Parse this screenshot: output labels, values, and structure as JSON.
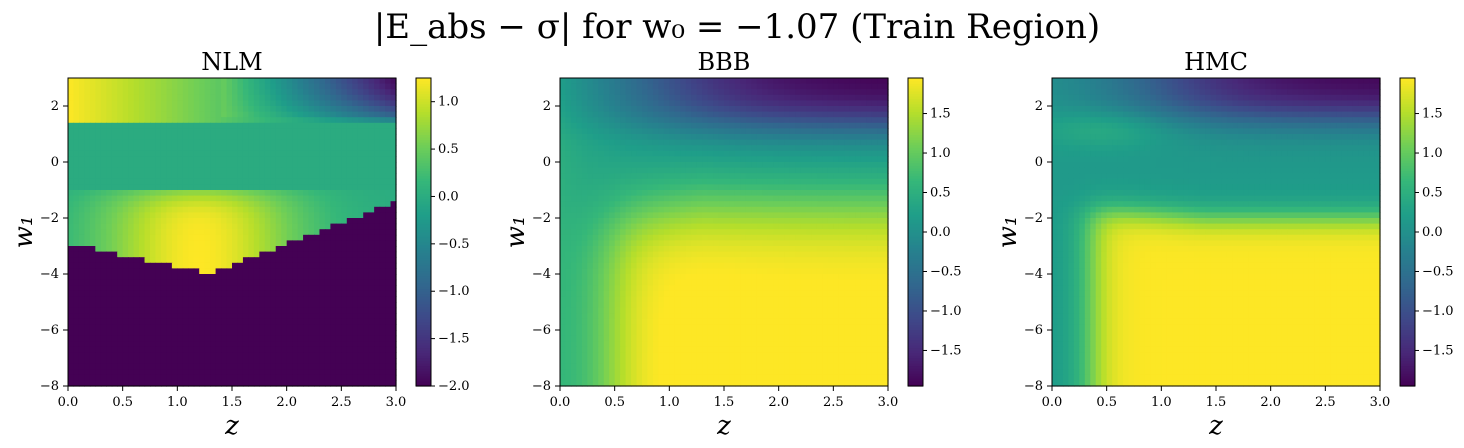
{
  "figure": {
    "title": "|E_abs − σ| for w₀ = −1.07 (Train Region)"
  },
  "chart_data": [
    {
      "type": "heatmap",
      "title": "NLM",
      "xlabel": "z",
      "ylabel": "w₁",
      "xlim": [
        0.0,
        3.0
      ],
      "ylim": [
        -8,
        3
      ],
      "xticks": [
        "0.0",
        "0.5",
        "1.0",
        "1.5",
        "2.0",
        "2.5",
        "3.0"
      ],
      "yticks": [
        "−8",
        "−6",
        "−4",
        "−2",
        "0",
        "2"
      ],
      "colorbar": {
        "min": -2.0,
        "max": 1.25,
        "colormap": "viridis",
        "ticks": [
          "−2.0",
          "−1.5",
          "−1.0",
          "−0.5",
          "0.0",
          "0.5",
          "1.0"
        ]
      },
      "grid": {
        "nx": 60,
        "ny": 55,
        "z": [
          0.0,
          0.05,
          0.1,
          0.15,
          0.2,
          0.25,
          0.3,
          0.35,
          0.4,
          0.45,
          0.5,
          0.55,
          0.6,
          0.65,
          0.7,
          0.75,
          0.8,
          0.85,
          0.9,
          0.95,
          1.0,
          1.05,
          1.1,
          1.15,
          1.2,
          1.25,
          1.3,
          1.35,
          1.4,
          1.45,
          1.5,
          1.55,
          1.6,
          1.65,
          1.7,
          1.75,
          1.8,
          1.85,
          1.9,
          1.95,
          2.0,
          2.05,
          2.1,
          2.15,
          2.2,
          2.25,
          2.3,
          2.35,
          2.4,
          2.45,
          2.5,
          2.55,
          2.6,
          2.65,
          2.7,
          2.75,
          2.8,
          2.85,
          2.9,
          2.95
        ],
        "w1": [
          3.0,
          2.8,
          2.6,
          2.4,
          2.2,
          2.0,
          1.8,
          1.6,
          1.4,
          1.2,
          1.0,
          0.8,
          0.6,
          0.4,
          0.2,
          0.0,
          -0.2,
          -0.4,
          -0.6,
          -0.8,
          -1.0,
          -1.2,
          -1.4,
          -1.6,
          -1.8,
          -2.0,
          -2.2,
          -2.4,
          -2.6,
          -2.8,
          -3.0,
          -3.2,
          -3.4,
          -3.6,
          -3.8,
          -4.0,
          -4.2,
          -4.4,
          -4.6,
          -4.8,
          -5.0,
          -5.2,
          -5.4,
          -5.6,
          -5.8,
          -6.0,
          -6.2,
          -6.4,
          -6.6,
          -6.8,
          -7.0,
          -7.2,
          -7.4,
          -7.6,
          -7.8
        ]
      }
    },
    {
      "type": "heatmap",
      "title": "BBB",
      "xlabel": "z",
      "ylabel": "w₁",
      "xlim": [
        0.0,
        3.0
      ],
      "ylim": [
        -8,
        3
      ],
      "xticks": [
        "0.0",
        "0.5",
        "1.0",
        "1.5",
        "2.0",
        "2.5",
        "3.0"
      ],
      "yticks": [
        "−8",
        "−6",
        "−4",
        "−2",
        "0",
        "2"
      ],
      "colorbar": {
        "min": -1.95,
        "max": 1.95,
        "colormap": "viridis",
        "ticks": [
          "−1.5",
          "−1.0",
          "−0.5",
          "0.0",
          "0.5",
          "1.0",
          "1.5"
        ]
      }
    },
    {
      "type": "heatmap",
      "title": "HMC",
      "xlabel": "z",
      "ylabel": "w₁",
      "xlim": [
        0.0,
        3.0
      ],
      "ylim": [
        -8,
        3
      ],
      "xticks": [
        "0.0",
        "0.5",
        "1.0",
        "1.5",
        "2.0",
        "2.5",
        "3.0"
      ],
      "yticks": [
        "−8",
        "−6",
        "−4",
        "−2",
        "0",
        "2"
      ],
      "colorbar": {
        "min": -1.95,
        "max": 1.95,
        "colormap": "viridis",
        "ticks": [
          "−1.5",
          "−1.0",
          "−0.5",
          "0.0",
          "0.5",
          "1.0",
          "1.5"
        ]
      }
    }
  ]
}
